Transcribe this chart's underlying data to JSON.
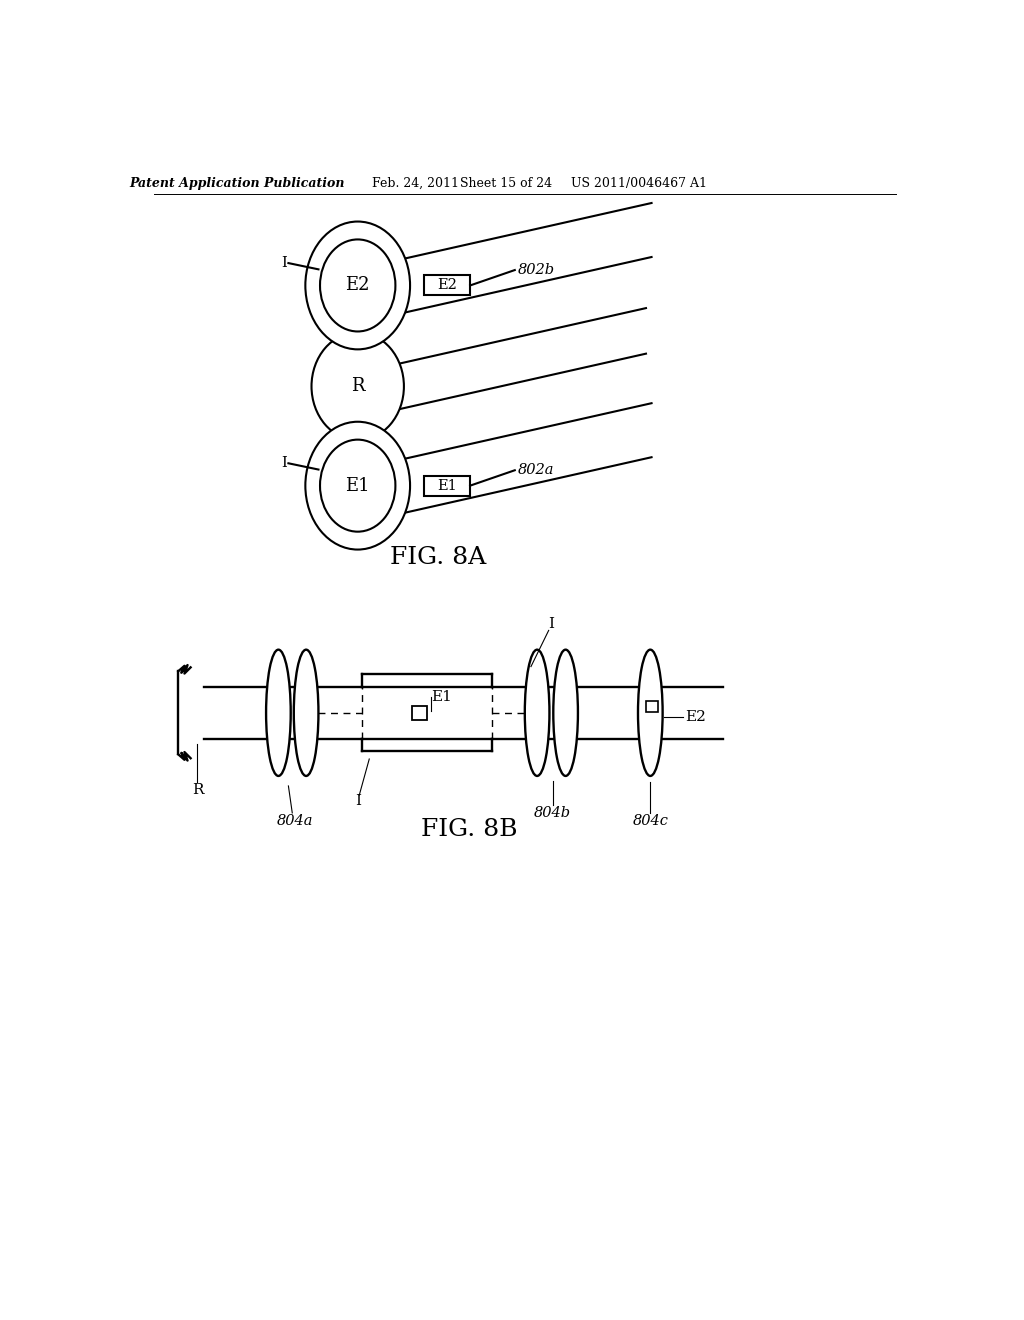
{
  "background_color": "#ffffff",
  "header_text": "Patent Application Publication",
  "header_date": "Feb. 24, 2011",
  "header_sheet": "Sheet 15 of 24",
  "header_patent": "US 2011/0046467 A1",
  "fig8a_label": "FIG. 8A",
  "fig8b_label": "FIG. 8B",
  "line_color": "#000000"
}
